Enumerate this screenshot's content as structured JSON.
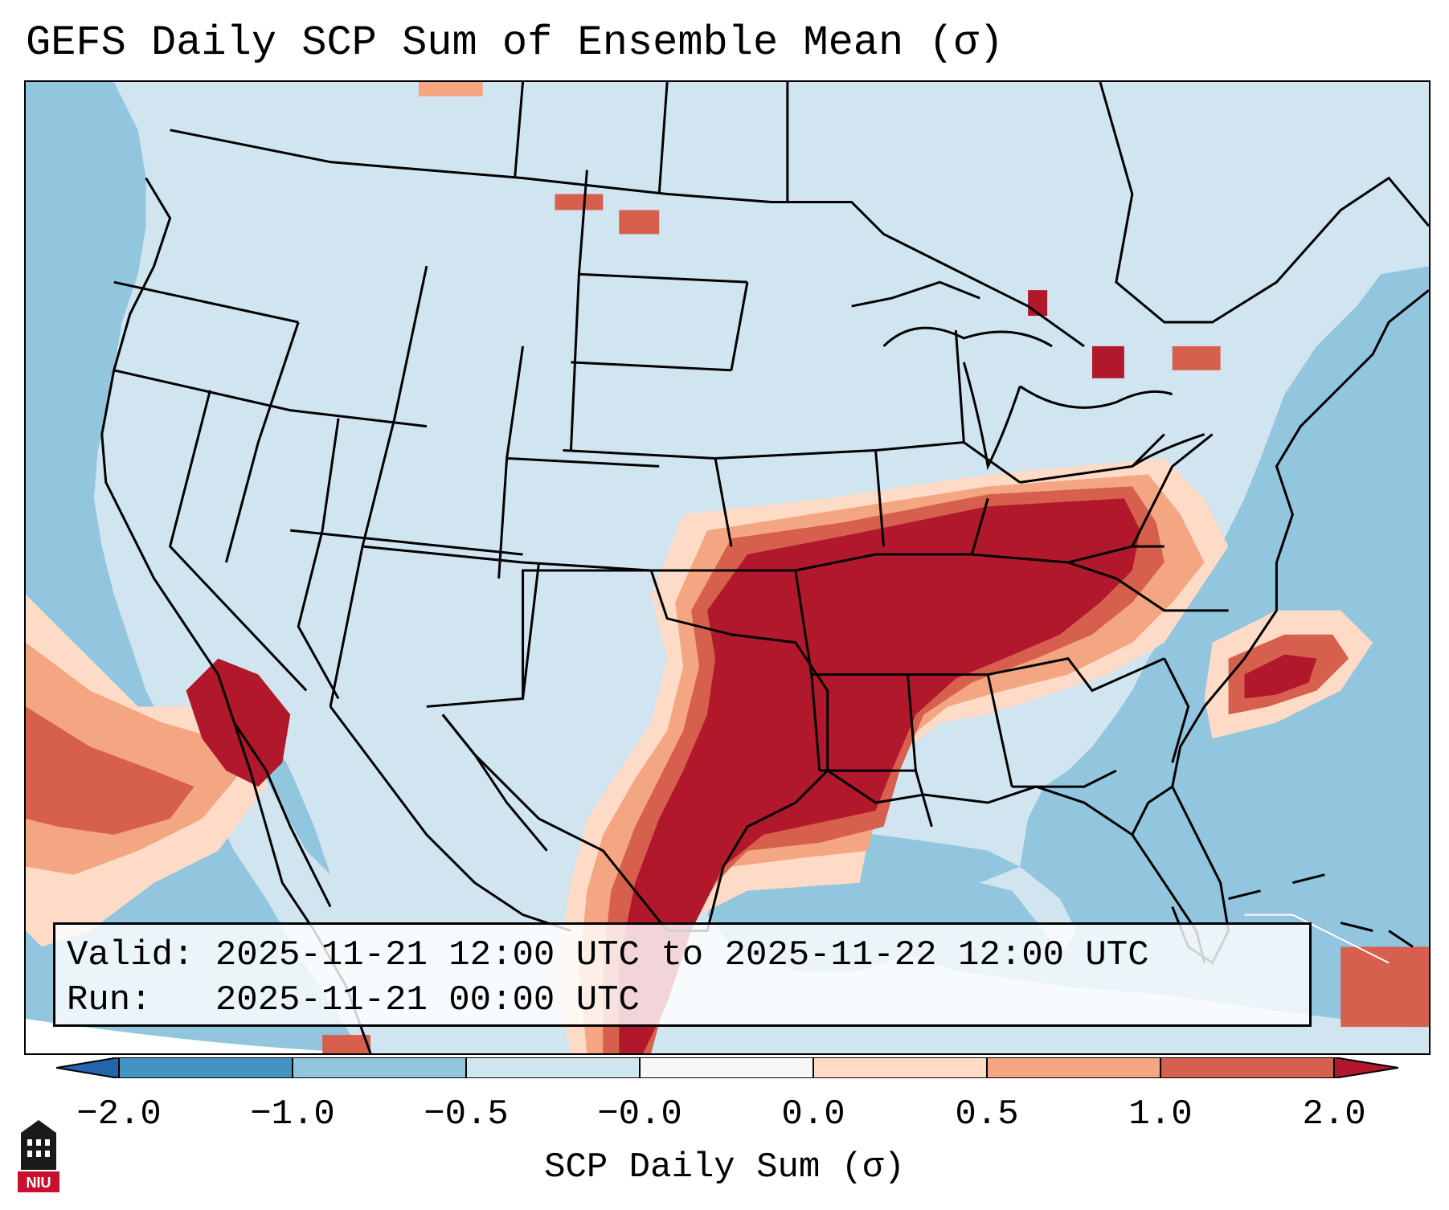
{
  "title": "GEFS Daily SCP Sum of Ensemble Mean (σ)",
  "info": {
    "valid_line": "Valid: 2025-11-21 12:00 UTC to 2025-11-22 12:00 UTC",
    "run_line": "Run:   2025-11-21 00:00 UTC"
  },
  "colorbar": {
    "label": "SCP Daily Sum (σ)",
    "ticks": [
      "−2.0",
      "−1.0",
      "−0.5",
      "−0.0",
      "0.0",
      "0.5",
      "1.0",
      "2.0"
    ],
    "colors": [
      "#4393c3",
      "#92c5de",
      "#d1e5f0",
      "#f7f7f7",
      "#fddbc7",
      "#f4a582",
      "#d6604d"
    ],
    "extend_low_color": "#2166ac",
    "extend_high_color": "#b2182b"
  },
  "map": {
    "ocean_color": "#92c5de",
    "land_color": "#d1e5f0",
    "high_color": "#b2182b",
    "mid_color": "#d6604d",
    "low_color": "#f4a582",
    "pale_color": "#fddbc7"
  },
  "logo": {
    "text": "NIU",
    "icon": "niu-logo-icon"
  }
}
